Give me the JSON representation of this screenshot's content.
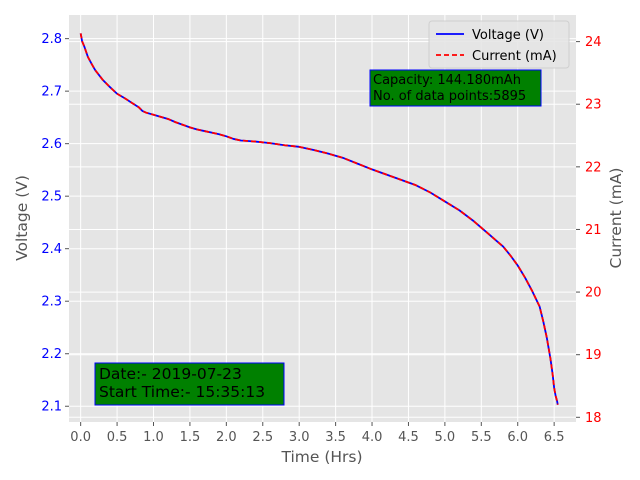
{
  "chart_data": {
    "type": "line",
    "xlabel": "Time (Hrs)",
    "ylabel": "Voltage (V)",
    "y2label": "Current (mA)",
    "xlim": [
      -0.16,
      6.8
    ],
    "ylim": [
      2.07,
      2.845
    ],
    "y2lim": [
      17.925,
      24.425
    ],
    "x_ticks": [
      "0.0",
      "0.5",
      "1.0",
      "1.5",
      "2.0",
      "2.5",
      "3.0",
      "3.5",
      "4.0",
      "4.5",
      "5.0",
      "5.5",
      "6.0",
      "6.5"
    ],
    "y_ticks": [
      "2.1",
      "2.2",
      "2.3",
      "2.4",
      "2.5",
      "2.6",
      "2.7",
      "2.8"
    ],
    "y2_ticks": [
      "18",
      "19",
      "20",
      "21",
      "22",
      "23",
      "24"
    ],
    "grid": true,
    "legend": "top-right",
    "series": [
      {
        "name": "Voltage (V)",
        "color": "#0000ff",
        "style": "solid",
        "axis": "left",
        "x": [
          0.0,
          0.02,
          0.05,
          0.1,
          0.15,
          0.2,
          0.3,
          0.4,
          0.5,
          0.6,
          0.7,
          0.8,
          0.85,
          0.9,
          1.0,
          1.1,
          1.2,
          1.3,
          1.4,
          1.5,
          1.6,
          1.7,
          1.8,
          1.9,
          2.0,
          2.1,
          2.2,
          2.4,
          2.6,
          2.8,
          3.0,
          3.2,
          3.4,
          3.6,
          3.8,
          4.0,
          4.2,
          4.4,
          4.6,
          4.8,
          5.0,
          5.2,
          5.4,
          5.5,
          5.6,
          5.7,
          5.8,
          5.9,
          6.0,
          6.1,
          6.2,
          6.3,
          6.35,
          6.4,
          6.45,
          6.48,
          6.5,
          6.52,
          6.54,
          6.55
        ],
        "y": [
          2.81,
          2.795,
          2.785,
          2.765,
          2.752,
          2.74,
          2.722,
          2.708,
          2.695,
          2.687,
          2.678,
          2.669,
          2.662,
          2.659,
          2.655,
          2.651,
          2.647,
          2.641,
          2.636,
          2.631,
          2.627,
          2.624,
          2.621,
          2.618,
          2.614,
          2.609,
          2.606,
          2.604,
          2.601,
          2.597,
          2.594,
          2.588,
          2.581,
          2.573,
          2.562,
          2.551,
          2.541,
          2.531,
          2.521,
          2.507,
          2.49,
          2.473,
          2.452,
          2.44,
          2.428,
          2.416,
          2.404,
          2.387,
          2.368,
          2.345,
          2.319,
          2.29,
          2.262,
          2.23,
          2.19,
          2.16,
          2.135,
          2.12,
          2.11,
          2.103
        ]
      },
      {
        "name": "Current (mA)",
        "color": "#ff0000",
        "style": "dashed",
        "axis": "left",
        "x": [
          0.0,
          0.02,
          0.05,
          0.1,
          0.15,
          0.2,
          0.3,
          0.4,
          0.5,
          0.6,
          0.7,
          0.8,
          0.85,
          0.9,
          1.0,
          1.1,
          1.2,
          1.3,
          1.4,
          1.5,
          1.6,
          1.7,
          1.8,
          1.9,
          2.0,
          2.1,
          2.2,
          2.4,
          2.6,
          2.8,
          3.0,
          3.2,
          3.4,
          3.6,
          3.8,
          4.0,
          4.2,
          4.4,
          4.6,
          4.8,
          5.0,
          5.2,
          5.4,
          5.5,
          5.6,
          5.7,
          5.8,
          5.9,
          6.0,
          6.1,
          6.2,
          6.3,
          6.35,
          6.4,
          6.45,
          6.48,
          6.5,
          6.52,
          6.54,
          6.55
        ],
        "y": [
          2.81,
          2.795,
          2.785,
          2.765,
          2.752,
          2.74,
          2.722,
          2.708,
          2.695,
          2.687,
          2.678,
          2.669,
          2.662,
          2.659,
          2.655,
          2.651,
          2.647,
          2.641,
          2.636,
          2.631,
          2.627,
          2.624,
          2.621,
          2.618,
          2.614,
          2.609,
          2.606,
          2.604,
          2.601,
          2.597,
          2.594,
          2.588,
          2.581,
          2.573,
          2.562,
          2.551,
          2.541,
          2.531,
          2.521,
          2.507,
          2.49,
          2.473,
          2.452,
          2.44,
          2.428,
          2.416,
          2.404,
          2.387,
          2.368,
          2.345,
          2.319,
          2.29,
          2.262,
          2.23,
          2.19,
          2.16,
          2.135,
          2.12,
          2.11,
          2.103
        ]
      }
    ],
    "annotations": {
      "capacity_line": "Capacity: 144.180mAh",
      "points_line": "No. of data points:5895",
      "date_line": "Date:- 2019-07-23",
      "start_time_line": "Start Time:- 15:35:13",
      "box_color": "#008000",
      "box_border_color": "#0000ff"
    },
    "colors": {
      "plot_background": "#e5e5e5",
      "grid": "#ffffff",
      "left_tick_color": "#0000ff",
      "right_tick_color": "#ff0000",
      "x_tick_color": "#555555"
    }
  }
}
